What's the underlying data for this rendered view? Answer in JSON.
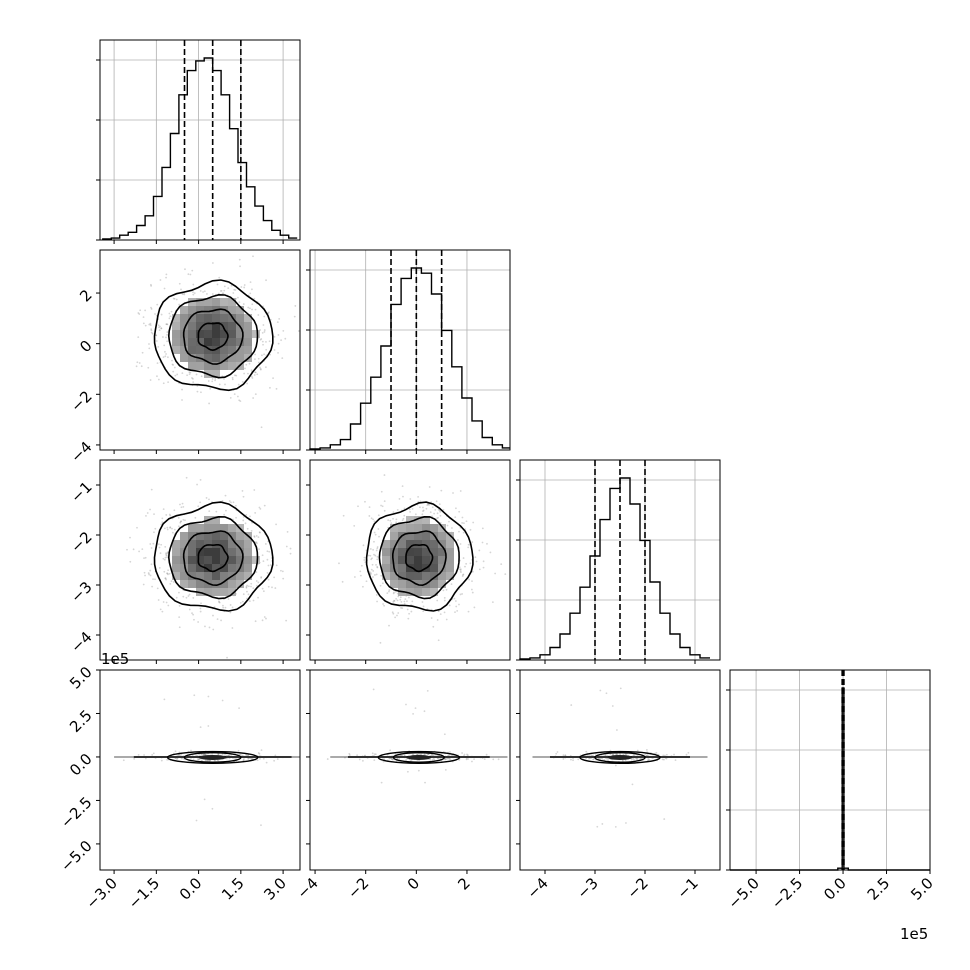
{
  "chart_data": {
    "type": "corner",
    "title": "",
    "grid": true,
    "parameters": [
      {
        "index": 0,
        "range": [
          -3.5,
          3.6
        ],
        "ticks": [
          -3.0,
          -1.5,
          0.0,
          1.5,
          3.0
        ],
        "tick_labels": [
          "−3.0",
          "−1.5",
          "0.0",
          "1.5",
          "3.0"
        ],
        "quantiles": [
          -0.5,
          0.5,
          1.5
        ],
        "offset_label": ""
      },
      {
        "index": 1,
        "range": [
          -4.2,
          3.7
        ],
        "ticks": [
          -4,
          -2,
          0,
          2
        ],
        "tick_labels": [
          "−4",
          "−2",
          "0",
          "2"
        ],
        "quantiles": [
          -1.0,
          0.0,
          1.0
        ],
        "offset_label": ""
      },
      {
        "index": 2,
        "range": [
          -4.5,
          -0.5
        ],
        "ticks": [
          -4,
          -3,
          -2,
          -1
        ],
        "tick_labels": [
          "−4",
          "−3",
          "−2",
          "−1"
        ],
        "quantiles": [
          -3.0,
          -2.5,
          -2.0
        ],
        "offset_label": ""
      },
      {
        "index": 3,
        "range": [
          -6.5,
          5.0
        ],
        "ticks": [
          -5.0,
          -2.5,
          0.0,
          2.5,
          5.0
        ],
        "tick_labels": [
          "−5.0",
          "−2.5",
          "0.0",
          "2.5",
          "5.0"
        ],
        "quantiles": [
          -0.05,
          0.0,
          0.05
        ],
        "offset_label": "1e5"
      }
    ],
    "histograms": [
      {
        "param": 0,
        "bins": [
          -3.4,
          -3.1,
          -2.8,
          -2.5,
          -2.2,
          -1.9,
          -1.6,
          -1.3,
          -1.0,
          -0.7,
          -0.4,
          -0.1,
          0.2,
          0.5,
          0.8,
          1.1,
          1.4,
          1.7,
          2.0,
          2.3,
          2.6,
          2.9,
          3.2,
          3.5
        ],
        "counts": [
          1,
          2,
          5,
          8,
          15,
          25,
          45,
          75,
          110,
          150,
          175,
          185,
          188,
          175,
          150,
          115,
          80,
          55,
          35,
          20,
          10,
          5,
          2
        ]
      },
      {
        "param": 1,
        "bins": [
          -4.2,
          -3.8,
          -3.4,
          -3.0,
          -2.6,
          -2.2,
          -1.8,
          -1.4,
          -1.0,
          -0.6,
          -0.2,
          0.2,
          0.6,
          1.0,
          1.4,
          1.8,
          2.2,
          2.6,
          3.0,
          3.4,
          3.7
        ],
        "counts": [
          1,
          2,
          5,
          10,
          25,
          45,
          70,
          100,
          140,
          165,
          175,
          170,
          150,
          115,
          80,
          50,
          28,
          12,
          5,
          2
        ]
      },
      {
        "param": 2,
        "bins": [
          -4.5,
          -4.3,
          -4.1,
          -3.9,
          -3.7,
          -3.5,
          -3.3,
          -3.1,
          -2.9,
          -2.7,
          -2.5,
          -2.3,
          -2.1,
          -1.9,
          -1.7,
          -1.5,
          -1.3,
          -1.1,
          -0.9,
          -0.7
        ],
        "counts": [
          1,
          2,
          5,
          12,
          25,
          45,
          70,
          100,
          135,
          165,
          175,
          150,
          115,
          75,
          45,
          25,
          12,
          5,
          2
        ]
      },
      {
        "param": 3,
        "bins": [
          -6.5,
          -0.3,
          -0.05,
          0.05,
          0.3,
          5.0
        ],
        "counts": [
          0,
          1,
          100,
          1,
          0
        ]
      }
    ],
    "panels": [
      {
        "x": 0,
        "y": 1,
        "center": [
          0.5,
          0.3
        ],
        "sigma": [
          1.0,
          1.0
        ]
      },
      {
        "x": 0,
        "y": 2,
        "center": [
          0.5,
          -2.45
        ],
        "sigma": [
          1.0,
          0.5
        ]
      },
      {
        "x": 1,
        "y": 2,
        "center": [
          0.1,
          -2.45
        ],
        "sigma": [
          1.0,
          0.5
        ]
      },
      {
        "x": 0,
        "y": 3,
        "center": [
          0.5,
          0.0
        ],
        "sigma": [
          1.0,
          0.15
        ]
      },
      {
        "x": 1,
        "y": 3,
        "center": [
          0.1,
          0.0
        ],
        "sigma": [
          1.0,
          0.15
        ]
      },
      {
        "x": 2,
        "y": 3,
        "center": [
          -2.5,
          0.0
        ],
        "sigma": [
          0.5,
          0.15
        ]
      }
    ],
    "y_offset_label": "1e5",
    "x_offset_label": "1e5"
  }
}
